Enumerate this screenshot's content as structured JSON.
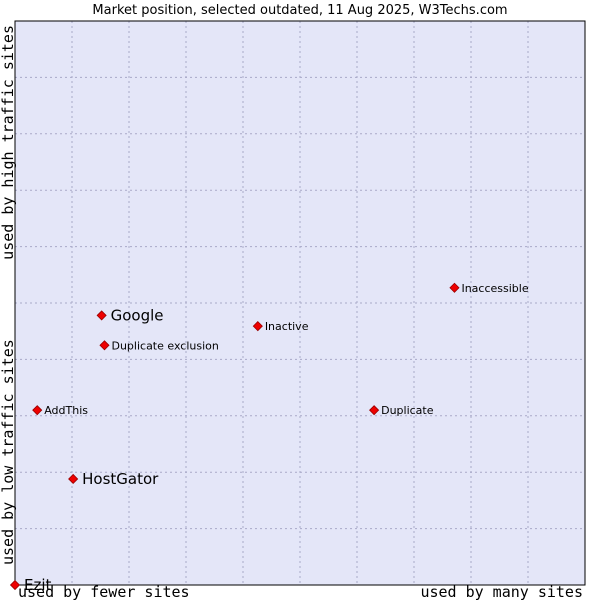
{
  "chart_data": {
    "type": "scatter",
    "title": "Market position, selected outdated, 11 Aug 2025, W3Techs.com",
    "xlabel_left": "used by fewer sites",
    "xlabel_right": "used by many sites",
    "ylabel_bottom": "used by low traffic sites",
    "ylabel_top": "used by high traffic sites",
    "xlim": [
      0,
      100
    ],
    "ylim": [
      0,
      100
    ],
    "grid": true,
    "colors": {
      "plot_bg": "#e4e6f8",
      "marker": "#ee0000",
      "marker_edge": "#990000",
      "grid": "#a9a9c8"
    },
    "points": [
      {
        "name": "Google",
        "x": 15.2,
        "y": 47.8,
        "size": "large"
      },
      {
        "name": "Inactive",
        "x": 42.6,
        "y": 45.9,
        "size": "small"
      },
      {
        "name": "Inaccessible",
        "x": 77.1,
        "y": 52.7,
        "size": "small"
      },
      {
        "name": "Duplicate exclusion",
        "x": 15.7,
        "y": 42.5,
        "size": "small"
      },
      {
        "name": "AddThis",
        "x": 3.9,
        "y": 31.0,
        "size": "small"
      },
      {
        "name": "Duplicate",
        "x": 63.0,
        "y": 31.0,
        "size": "small"
      },
      {
        "name": "HostGator",
        "x": 10.2,
        "y": 18.8,
        "size": "large"
      },
      {
        "name": "Ezit",
        "x": 0.0,
        "y": 0.0,
        "size": "large"
      }
    ]
  }
}
